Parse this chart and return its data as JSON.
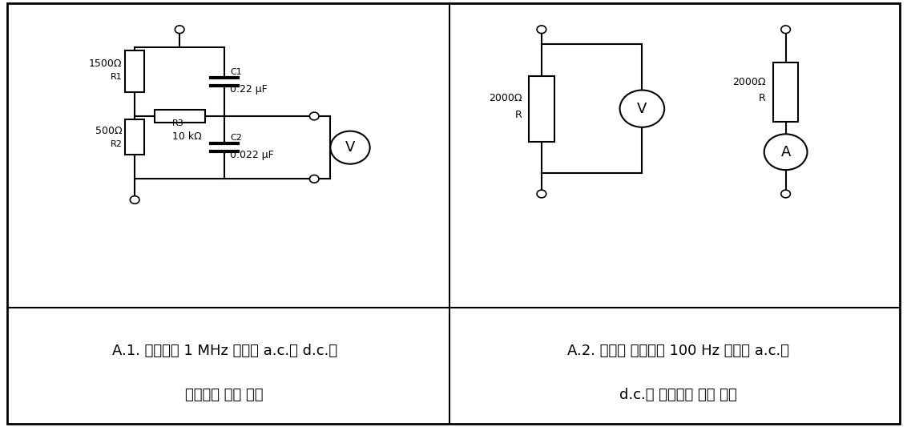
{
  "bg_color": "#ffffff",
  "line_color": "#000000",
  "text_color": "#000000",
  "caption1_line1": "A.1. 주파수가 1 MHz 이하인 a.c.와 d.c.에",
  "caption1_line2": "사용하는 측정 회로",
  "caption2_line1": "A.2. 정현파 주파수가 100 Hz 이하인 a.c.와",
  "caption2_line2": "d.c.에 사용하는 측정 회로",
  "font_size_caption": 13,
  "font_size_label": 10
}
